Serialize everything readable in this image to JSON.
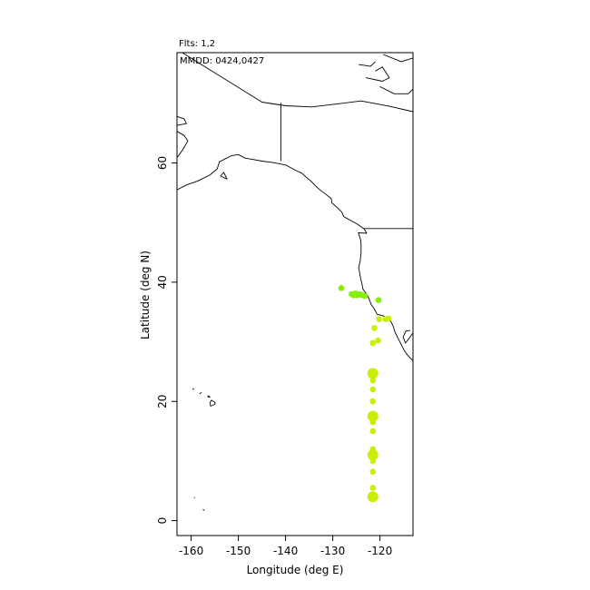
{
  "header": {
    "flights": "Flts: 1,2",
    "dates": "MMDD: 0424,0427"
  },
  "chart_data": {
    "type": "scatter",
    "title": "",
    "xlabel": "Longitude (deg E)",
    "ylabel": "Latitude (deg N)",
    "xlim": [
      -163,
      -113
    ],
    "ylim": [
      -2.5,
      78.5
    ],
    "x_ticks": [
      -160,
      -150,
      -140,
      -130,
      -120
    ],
    "y_ticks": [
      0,
      20,
      40,
      60
    ],
    "grid": false,
    "colors": {
      "flight_1": "#ccee00",
      "flight_2": "#88ee00",
      "coast": "#000000"
    },
    "series": [
      {
        "points": [
          {
            "x": -121.5,
            "y": 4.0,
            "size": 2
          },
          {
            "x": -121.5,
            "y": 5.5,
            "size": 1
          },
          {
            "x": -121.5,
            "y": 8.2,
            "size": 1
          },
          {
            "x": -121.5,
            "y": 10.0,
            "size": 1
          },
          {
            "x": -121.5,
            "y": 11.0,
            "size": 2
          },
          {
            "x": -121.5,
            "y": 12.0,
            "size": 1
          },
          {
            "x": -121.5,
            "y": 15.0,
            "size": 1
          },
          {
            "x": -121.5,
            "y": 16.5,
            "size": 1
          },
          {
            "x": -121.5,
            "y": 17.5,
            "size": 2
          },
          {
            "x": -121.5,
            "y": 20.0,
            "size": 1
          },
          {
            "x": -121.5,
            "y": 22.0,
            "size": 1
          },
          {
            "x": -121.5,
            "y": 23.5,
            "size": 1
          },
          {
            "x": -121.5,
            "y": 24.7,
            "size": 2
          },
          {
            "x": -121.5,
            "y": 29.8,
            "size": 1
          },
          {
            "x": -120.4,
            "y": 30.2,
            "size": 1
          },
          {
            "x": -121.2,
            "y": 32.3,
            "size": 1
          },
          {
            "x": -120.2,
            "y": 33.8,
            "size": 1
          },
          {
            "x": -118.8,
            "y": 33.8,
            "size": 1
          },
          {
            "x": -118.2,
            "y": 33.9,
            "size": 1
          }
        ]
      },
      {
        "points": [
          {
            "x": -128.2,
            "y": 39.0,
            "size": 1
          },
          {
            "x": -126.0,
            "y": 38.0,
            "size": 1
          },
          {
            "x": -125.6,
            "y": 37.8,
            "size": 1
          },
          {
            "x": -125.2,
            "y": 38.1,
            "size": 1
          },
          {
            "x": -124.8,
            "y": 37.8,
            "size": 1
          },
          {
            "x": -124.4,
            "y": 38.0,
            "size": 1
          },
          {
            "x": -124.0,
            "y": 37.9,
            "size": 1
          },
          {
            "x": -123.6,
            "y": 37.8,
            "size": 1
          },
          {
            "x": -123.2,
            "y": 37.7,
            "size": 1
          },
          {
            "x": -120.3,
            "y": 37.0,
            "size": 1
          }
        ]
      }
    ]
  },
  "basemap": {
    "lines": [
      [
        [
          -163,
          66.3
        ],
        [
          -161,
          66.6
        ],
        [
          -161.5,
          67.4
        ],
        [
          -163,
          67.8
        ]
      ],
      [
        [
          -163,
          65.3
        ],
        [
          -161.5,
          64.6
        ],
        [
          -160.7,
          63.7
        ],
        [
          -161.8,
          62.2
        ],
        [
          -162.5,
          61.4
        ],
        [
          -163,
          60.9
        ]
      ],
      [
        [
          -163,
          55.5
        ],
        [
          -161,
          56.3
        ],
        [
          -158.5,
          57
        ],
        [
          -156,
          58
        ],
        [
          -154.5,
          59
        ],
        [
          -154,
          60.2
        ],
        [
          -151.5,
          61.2
        ],
        [
          -150,
          61.4
        ],
        [
          -148.5,
          60.8
        ],
        [
          -147,
          60.6
        ],
        [
          -145,
          60.3
        ],
        [
          -143,
          60.1
        ],
        [
          -141.5,
          59.9
        ],
        [
          -139.8,
          59.6
        ],
        [
          -138,
          58.8
        ],
        [
          -136.6,
          58.3
        ],
        [
          -135.6,
          57.6
        ],
        [
          -134.7,
          57
        ],
        [
          -133.6,
          56.1
        ],
        [
          -132.6,
          55.4
        ],
        [
          -131.4,
          54.7
        ],
        [
          -130.3,
          54
        ],
        [
          -130.2,
          53.3
        ],
        [
          -129.2,
          52.6
        ],
        [
          -128.1,
          51.8
        ],
        [
          -127.7,
          51
        ],
        [
          -126.3,
          50.4
        ],
        [
          -124.9,
          49.8
        ],
        [
          -123.3,
          48.9
        ],
        [
          -122.8,
          48.2
        ],
        [
          -124.6,
          48.3
        ],
        [
          -124.1,
          47.1
        ],
        [
          -124,
          46.3
        ],
        [
          -124,
          45
        ],
        [
          -124.2,
          43.5
        ],
        [
          -124.5,
          42.5
        ],
        [
          -124.2,
          41
        ],
        [
          -123.8,
          39.7
        ],
        [
          -123.6,
          38.8
        ],
        [
          -122.8,
          38
        ],
        [
          -122.5,
          37.5
        ],
        [
          -122.1,
          36.8
        ],
        [
          -121.9,
          36.3
        ],
        [
          -121.2,
          35.5
        ],
        [
          -120.6,
          34.6
        ],
        [
          -119.5,
          34.4
        ],
        [
          -118.5,
          34
        ],
        [
          -117.6,
          33.3
        ],
        [
          -117.2,
          32.6
        ],
        [
          -116.8,
          31.6
        ],
        [
          -116.2,
          30.6
        ],
        [
          -115.6,
          29.7
        ],
        [
          -114.9,
          28.6
        ],
        [
          -114.1,
          27.7
        ],
        [
          -113,
          26.8
        ]
      ],
      [
        [
          -113,
          31.5
        ],
        [
          -113.8,
          30.6
        ],
        [
          -114.6,
          29.8
        ],
        [
          -115.1,
          30.8
        ],
        [
          -114.5,
          31.8
        ],
        [
          -113.6,
          31.9
        ]
      ],
      [
        [
          -141,
          70.1
        ],
        [
          -141,
          60.3
        ]
      ],
      [
        [
          -123.3,
          49
        ],
        [
          -113,
          49
        ]
      ],
      [
        [
          -153.8,
          57.8
        ],
        [
          -152.4,
          57.3
        ],
        [
          -153.1,
          58.4
        ],
        [
          -153.8,
          57.8
        ]
      ],
      [
        [
          -155.9,
          19.2
        ],
        [
          -155,
          19.5
        ],
        [
          -154.9,
          19.8
        ],
        [
          -155.7,
          20.2
        ],
        [
          -156,
          19.8
        ],
        [
          -155.9,
          19.2
        ]
      ],
      [
        [
          -156.6,
          20.8
        ],
        [
          -156,
          20.7
        ],
        [
          -156.4,
          21
        ]
      ],
      [
        [
          -159.7,
          22.0
        ],
        [
          -159.4,
          22.2
        ]
      ],
      [
        [
          -158.2,
          21.3
        ],
        [
          -157.8,
          21.5
        ]
      ],
      [
        [
          -162.9,
          79
        ],
        [
          -145,
          70.2
        ],
        [
          -140,
          69.6
        ],
        [
          -134.5,
          69.4
        ],
        [
          -128,
          70
        ],
        [
          -124,
          70.4
        ],
        [
          -118,
          69.5
        ],
        [
          -113,
          68.6
        ]
      ],
      [
        [
          -120,
          72.8
        ],
        [
          -117,
          71.6
        ],
        [
          -114,
          71.6
        ],
        [
          -113,
          72.4
        ]
      ],
      [
        [
          -123,
          74.3
        ],
        [
          -119.5,
          73.7
        ],
        [
          -118,
          74.3
        ],
        [
          -119.5,
          76.1
        ],
        [
          -121,
          75.4
        ]
      ],
      [
        [
          -119.3,
          78.2
        ],
        [
          -115.5,
          77
        ],
        [
          -113,
          77.6
        ]
      ],
      [
        [
          -124.5,
          76.5
        ],
        [
          -122,
          76.2
        ],
        [
          -121,
          77
        ]
      ],
      [
        [
          -159.2,
          3.9
        ],
        [
          -159.4,
          3.8
        ]
      ],
      [
        [
          -157.5,
          1.9
        ],
        [
          -157.2,
          1.7
        ]
      ]
    ]
  }
}
